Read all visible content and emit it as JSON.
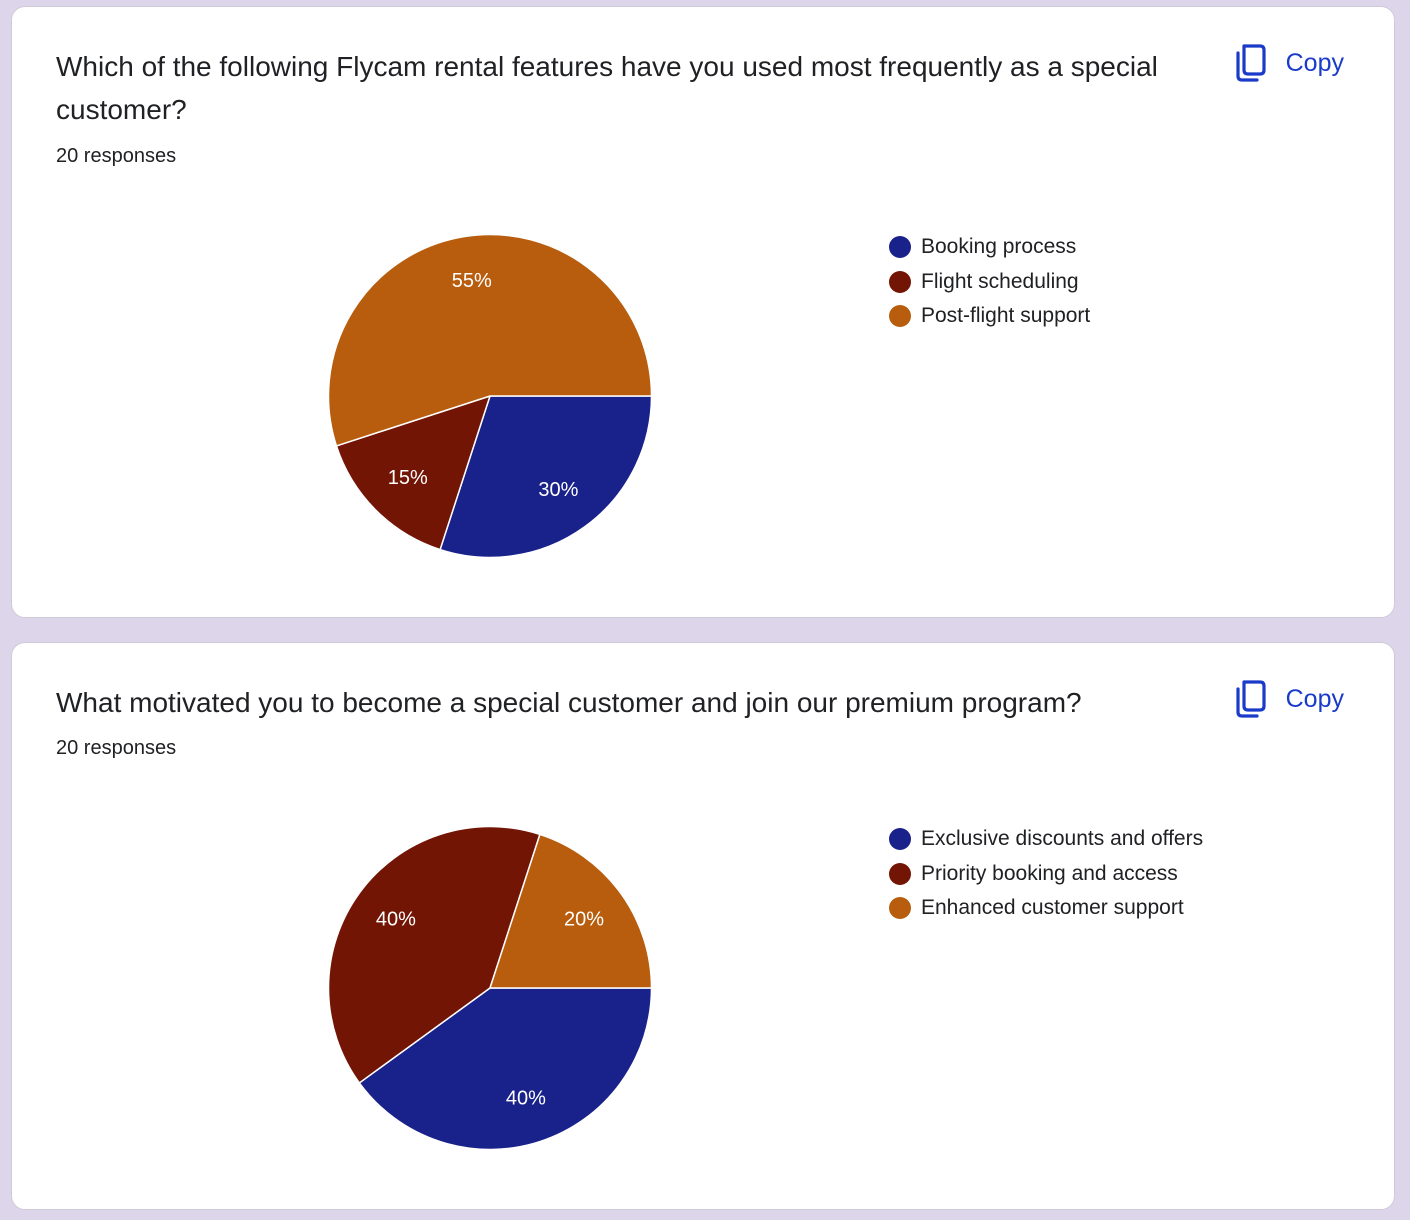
{
  "colors": {
    "background": "#ddd6eb",
    "accent": "#1a3bc9",
    "series": [
      "#19218a",
      "#731505",
      "#b85d0d"
    ]
  },
  "cards": [
    {
      "question": "Which of the following Flycam rental features have you used most frequently as a special customer?",
      "responses": "20 responses",
      "copy_label": "Copy",
      "copy_icon": "copy-icon"
    },
    {
      "question": "What motivated you to become a special customer and join our premium program?",
      "responses": "20 responses",
      "copy_label": "Copy",
      "copy_icon": "copy-icon"
    }
  ],
  "chart_data": [
    {
      "type": "pie",
      "title": "Which of the following Flycam rental features have you used most frequently as a special customer?",
      "total_responses": 20,
      "legend_position": "right",
      "slices": [
        {
          "label": "Booking process",
          "value": 30,
          "display": "30%",
          "color": "#19218a"
        },
        {
          "label": "Flight scheduling",
          "value": 15,
          "display": "15%",
          "color": "#731505"
        },
        {
          "label": "Post-flight support",
          "value": 55,
          "display": "55%",
          "color": "#b85d0d"
        }
      ]
    },
    {
      "type": "pie",
      "title": "What motivated you to become a special customer and join our premium program?",
      "total_responses": 20,
      "legend_position": "right",
      "slices": [
        {
          "label": "Exclusive discounts and offers",
          "value": 40,
          "display": "40%",
          "color": "#19218a"
        },
        {
          "label": "Priority booking and access",
          "value": 40,
          "display": "40%",
          "color": "#731505"
        },
        {
          "label": "Enhanced customer support",
          "value": 20,
          "display": "20%",
          "color": "#b85d0d"
        }
      ]
    }
  ]
}
